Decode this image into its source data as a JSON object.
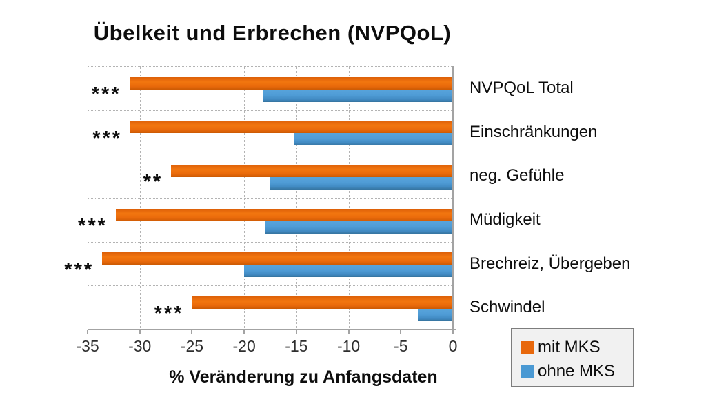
{
  "title": "Übelkeit und Erbrechen (NVPQoL)",
  "axis": {
    "xlabel": "% Veränderung zu Anfangsdaten",
    "ticks": [
      -35,
      -30,
      -25,
      -20,
      -15,
      -10,
      -5,
      0
    ],
    "xlim": [
      -35,
      0
    ]
  },
  "legend": {
    "items": [
      {
        "label": "mit MKS",
        "color": "#e8680c"
      },
      {
        "label": "ohne MKS",
        "color": "#4a99d3"
      }
    ]
  },
  "chart_data": {
    "type": "bar",
    "orientation": "horizontal",
    "title": "Übelkeit und Erbrechen (NVPQoL)",
    "xlabel": "% Veränderung zu Anfangsdaten",
    "ylabel": "",
    "xlim": [
      -35,
      0
    ],
    "grid": true,
    "legend_position": "bottom-right",
    "categories": [
      "NVPQoL Total",
      "Einschränkungen",
      "neg. Gefühle",
      "Müdigkeit",
      "Brechreiz, Übergeben",
      "Schwindel"
    ],
    "series": [
      {
        "name": "mit MKS",
        "color": "#e8680c",
        "values": [
          -31.0,
          -30.9,
          -27.0,
          -32.3,
          -33.6,
          -25.0
        ]
      },
      {
        "name": "ohne MKS",
        "color": "#4a99d3",
        "values": [
          -18.2,
          -15.2,
          -17.5,
          -18.0,
          -20.0,
          -3.4
        ]
      }
    ],
    "significance": [
      "***",
      "***",
      "**",
      "***",
      "***",
      "***"
    ]
  }
}
